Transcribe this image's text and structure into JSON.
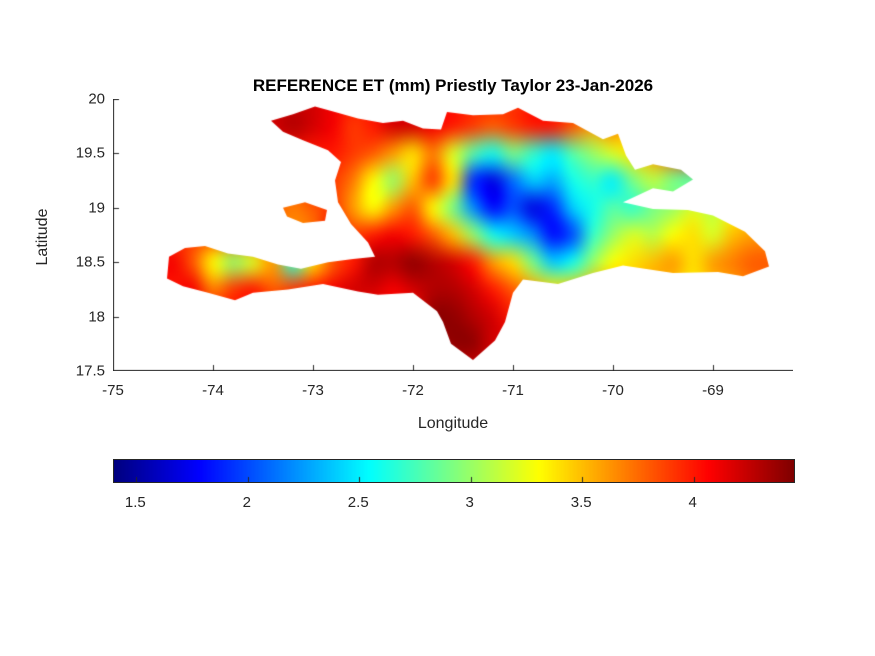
{
  "figure": {
    "title": "REFERENCE ET (mm) Priestly Taylor 23-Jan-2026",
    "xlabel": "Longitude",
    "ylabel": "Latitude"
  },
  "axes": {
    "xlim": [
      -75,
      -68.2
    ],
    "ylim": [
      17.5,
      20
    ],
    "xticks": [
      -75,
      -74,
      -73,
      -72,
      -71,
      -70,
      -69
    ],
    "xtick_labels": [
      "-75",
      "-74",
      "-73",
      "-72",
      "-71",
      "-70",
      "-69"
    ],
    "yticks": [
      17.5,
      18,
      18.5,
      19,
      19.5,
      20
    ],
    "ytick_labels": [
      "17.5",
      "18",
      "18.5",
      "19",
      "19.5",
      "20"
    ]
  },
  "colorbar": {
    "orientation": "horizontal",
    "colormap": "jet",
    "min": 1.4,
    "max": 4.45,
    "ticks": [
      1.5,
      2,
      2.5,
      3,
      3.5,
      4
    ],
    "tick_labels": [
      "1.5",
      "2",
      "2.5",
      "3",
      "3.5",
      "4"
    ]
  },
  "chart_data": {
    "type": "heatmap",
    "title": "REFERENCE ET (mm) Priestly Taylor 23-Jan-2026",
    "variable": "Reference ET (mm)",
    "method": "Priestly Taylor",
    "date": "23-Jan-2026",
    "region": "Hispaniola (Haiti and Dominican Republic)",
    "xlabel": "Longitude",
    "ylabel": "Latitude",
    "colormap": "jet",
    "value_range": [
      1.4,
      4.45
    ],
    "grid": {
      "lon_start": -74.6,
      "lon_step": 0.2,
      "ncols": 32,
      "lat_start": 20.0,
      "lat_step": -0.25,
      "nrows": 11,
      "values": [
        [
          4.1,
          4.1,
          4.1,
          4.1,
          4.1,
          4.1,
          4.2,
          4.2,
          4.2,
          4.1,
          4.0,
          4.0,
          4.1,
          4.1,
          4.0,
          4.0,
          3.9,
          3.9,
          3.9,
          4.0,
          4.0,
          3.9,
          3.8,
          3.8,
          3.7,
          3.6,
          3.5,
          3.4,
          3.4,
          3.5,
          3.5,
          3.5
        ],
        [
          4.0,
          4.0,
          4.0,
          4.0,
          4.0,
          4.1,
          4.2,
          4.3,
          4.2,
          4.1,
          3.9,
          4.0,
          4.2,
          4.2,
          4.1,
          4.0,
          3.9,
          3.8,
          3.9,
          4.0,
          4.0,
          3.8,
          3.6,
          3.7,
          3.5,
          3.4,
          3.3,
          3.2,
          3.3,
          3.5,
          3.5,
          3.5
        ],
        [
          4.0,
          4.0,
          4.0,
          4.0,
          4.0,
          4.0,
          4.1,
          4.0,
          4.0,
          4.0,
          3.9,
          3.8,
          3.6,
          3.4,
          3.7,
          3.2,
          2.8,
          2.6,
          2.9,
          2.7,
          2.5,
          2.8,
          3.0,
          3.2,
          3.4,
          3.6,
          3.8,
          4.0,
          3.9,
          3.8,
          3.8,
          3.8
        ],
        [
          3.8,
          3.8,
          3.8,
          3.8,
          3.8,
          3.8,
          3.9,
          3.8,
          4.0,
          3.9,
          3.7,
          3.3,
          3.0,
          3.5,
          3.9,
          3.4,
          1.9,
          1.7,
          2.1,
          2.4,
          2.3,
          2.6,
          2.7,
          2.5,
          2.9,
          3.1,
          2.9,
          2.8,
          3.0,
          3.1,
          3.2,
          3.2
        ],
        [
          3.8,
          3.8,
          3.8,
          3.8,
          3.8,
          3.8,
          3.8,
          3.7,
          3.8,
          3.9,
          3.6,
          3.3,
          3.6,
          3.8,
          3.3,
          2.9,
          2.2,
          1.8,
          2.0,
          1.7,
          1.9,
          2.4,
          2.6,
          2.8,
          2.7,
          2.9,
          3.0,
          3.2,
          3.1,
          3.3,
          3.4,
          3.4
        ],
        [
          3.9,
          3.9,
          3.9,
          3.9,
          3.9,
          3.9,
          3.8,
          3.6,
          3.7,
          4.1,
          3.9,
          4.0,
          4.1,
          4.0,
          3.8,
          3.5,
          3.0,
          2.6,
          2.4,
          2.2,
          1.8,
          2.0,
          2.7,
          3.0,
          3.2,
          3.1,
          3.3,
          3.4,
          3.2,
          3.5,
          3.6,
          3.6
        ],
        [
          4.0,
          4.1,
          3.8,
          3.3,
          3.0,
          3.2,
          3.6,
          2.7,
          3.4,
          3.8,
          4.0,
          4.3,
          4.3,
          4.4,
          4.3,
          4.2,
          4.0,
          3.6,
          3.4,
          2.9,
          2.4,
          2.6,
          3.0,
          3.3,
          3.4,
          3.5,
          3.6,
          3.4,
          3.6,
          3.7,
          3.8,
          3.8
        ],
        [
          4.0,
          4.0,
          4.1,
          3.7,
          3.9,
          4.0,
          3.8,
          3.9,
          4.0,
          4.1,
          4.2,
          4.2,
          4.1,
          4.2,
          4.3,
          4.3,
          4.2,
          4.0,
          3.8,
          3.6,
          3.4,
          3.5,
          3.6,
          3.6,
          3.5,
          3.6,
          3.5,
          3.4,
          3.5,
          3.6,
          3.7,
          3.7
        ],
        [
          4.0,
          4.0,
          4.0,
          4.0,
          4.0,
          4.0,
          4.0,
          4.0,
          4.0,
          4.0,
          4.0,
          4.0,
          4.0,
          4.0,
          4.4,
          4.4,
          4.3,
          4.2,
          4.0,
          4.0,
          4.0,
          4.0,
          4.0,
          4.0,
          4.0,
          4.0,
          4.0,
          4.0,
          4.0,
          4.0,
          4.0,
          4.0
        ],
        [
          4.2,
          4.2,
          4.2,
          4.2,
          4.2,
          4.2,
          4.2,
          4.2,
          4.2,
          4.2,
          4.2,
          4.2,
          4.2,
          4.2,
          4.3,
          4.4,
          4.4,
          4.2,
          4.2,
          4.2,
          4.2,
          4.2,
          4.2,
          4.2,
          4.2,
          4.2,
          4.2,
          4.2,
          4.2,
          4.2,
          4.2,
          4.2
        ],
        [
          4.2,
          4.2,
          4.2,
          4.2,
          4.2,
          4.2,
          4.2,
          4.2,
          4.2,
          4.2,
          4.2,
          4.2,
          4.2,
          4.2,
          4.2,
          4.2,
          4.2,
          4.2,
          4.2,
          4.2,
          4.2,
          4.2,
          4.2,
          4.2,
          4.2,
          4.2,
          4.2,
          4.2,
          4.2,
          4.2,
          4.2,
          4.2
        ]
      ]
    },
    "outline_main": [
      [
        -73.42,
        19.8
      ],
      [
        -73.2,
        19.86
      ],
      [
        -72.98,
        19.93
      ],
      [
        -72.78,
        19.88
      ],
      [
        -72.55,
        19.82
      ],
      [
        -72.3,
        19.78
      ],
      [
        -72.1,
        19.8
      ],
      [
        -71.9,
        19.73
      ],
      [
        -71.72,
        19.72
      ],
      [
        -71.66,
        19.88
      ],
      [
        -71.4,
        19.85
      ],
      [
        -71.1,
        19.86
      ],
      [
        -70.95,
        19.92
      ],
      [
        -70.7,
        19.8
      ],
      [
        -70.4,
        19.78
      ],
      [
        -70.1,
        19.63
      ],
      [
        -69.95,
        19.68
      ],
      [
        -69.87,
        19.48
      ],
      [
        -69.78,
        19.35
      ],
      [
        -69.6,
        19.4
      ],
      [
        -69.32,
        19.35
      ],
      [
        -69.2,
        19.26
      ],
      [
        -69.4,
        19.15
      ],
      [
        -69.6,
        19.18
      ],
      [
        -69.9,
        19.05
      ],
      [
        -69.6,
        18.99
      ],
      [
        -69.25,
        18.98
      ],
      [
        -69.0,
        18.93
      ],
      [
        -68.68,
        18.78
      ],
      [
        -68.48,
        18.6
      ],
      [
        -68.44,
        18.46
      ],
      [
        -68.7,
        18.37
      ],
      [
        -68.95,
        18.41
      ],
      [
        -69.4,
        18.4
      ],
      [
        -69.9,
        18.47
      ],
      [
        -70.2,
        18.4
      ],
      [
        -70.55,
        18.3
      ],
      [
        -70.9,
        18.34
      ],
      [
        -71.0,
        18.22
      ],
      [
        -71.08,
        17.95
      ],
      [
        -71.18,
        17.78
      ],
      [
        -71.4,
        17.6
      ],
      [
        -71.62,
        17.75
      ],
      [
        -71.7,
        17.95
      ],
      [
        -71.76,
        18.05
      ],
      [
        -72.0,
        18.22
      ],
      [
        -72.35,
        18.2
      ],
      [
        -72.55,
        18.23
      ],
      [
        -72.9,
        18.3
      ],
      [
        -73.25,
        18.25
      ],
      [
        -73.6,
        18.22
      ],
      [
        -73.78,
        18.15
      ],
      [
        -74.05,
        18.22
      ],
      [
        -74.3,
        18.28
      ],
      [
        -74.46,
        18.35
      ],
      [
        -74.44,
        18.55
      ],
      [
        -74.28,
        18.63
      ],
      [
        -74.08,
        18.65
      ],
      [
        -73.85,
        18.58
      ],
      [
        -73.6,
        18.55
      ],
      [
        -73.35,
        18.48
      ],
      [
        -73.12,
        18.44
      ],
      [
        -72.85,
        18.5
      ],
      [
        -72.6,
        18.53
      ],
      [
        -72.38,
        18.55
      ],
      [
        -72.45,
        18.68
      ],
      [
        -72.62,
        18.85
      ],
      [
        -72.75,
        19.05
      ],
      [
        -72.78,
        19.25
      ],
      [
        -72.72,
        19.42
      ],
      [
        -72.85,
        19.53
      ],
      [
        -73.1,
        19.62
      ],
      [
        -73.3,
        19.7
      ]
    ],
    "islands": {
      "gonave": [
        [
          -73.3,
          19.0
        ],
        [
          -73.08,
          19.05
        ],
        [
          -72.86,
          18.98
        ],
        [
          -72.88,
          18.88
        ],
        [
          -73.1,
          18.86
        ],
        [
          -73.26,
          18.92
        ]
      ],
      "northwest_speck": [
        [
          -74.98,
          19.95
        ],
        [
          -74.93,
          19.95
        ],
        [
          -74.93,
          19.9
        ],
        [
          -74.98,
          19.9
        ]
      ]
    }
  }
}
